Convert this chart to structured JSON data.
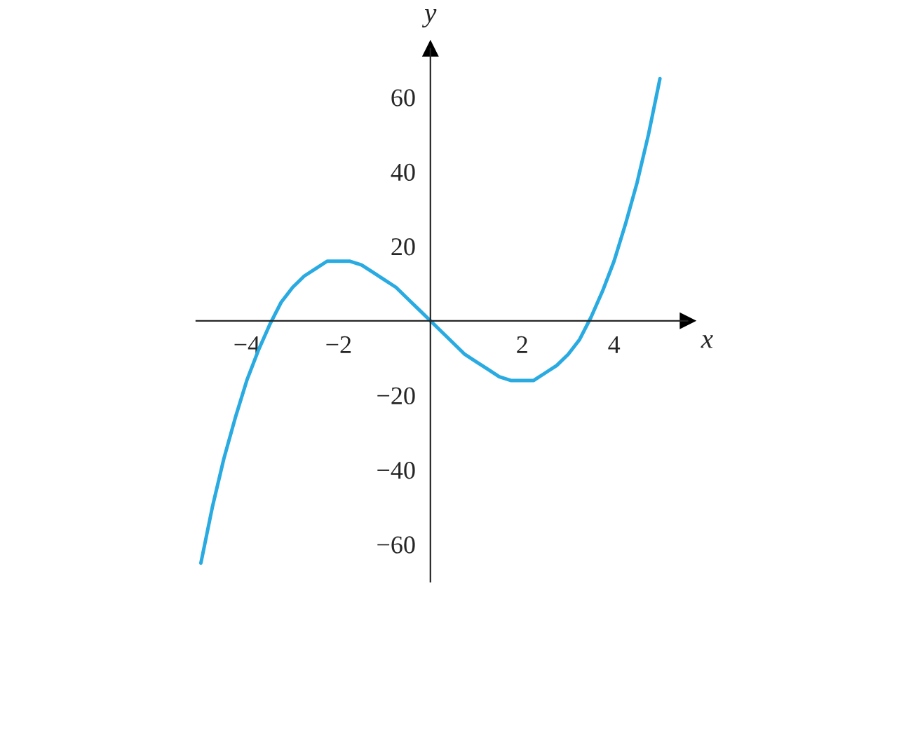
{
  "chart_data": {
    "type": "line",
    "xlabel": "x",
    "ylabel": "y",
    "x": [
      -5,
      -4.75,
      -4.5,
      -4.25,
      -4,
      -3.75,
      -3.5,
      -3.25,
      -3,
      -2.75,
      -2.5,
      -2.25,
      -2,
      -1.75,
      -1.5,
      -1.25,
      -1,
      -0.75,
      -0.5,
      -0.25,
      0,
      0.25,
      0.5,
      0.75,
      1,
      1.25,
      1.5,
      1.75,
      2,
      2.25,
      2.5,
      2.75,
      3,
      3.25,
      3.5,
      3.75,
      4,
      4.25,
      4.5,
      4.75,
      5
    ],
    "series": [
      {
        "color": "#29abe2",
        "values": [
          -65,
          -50,
          -37,
          -26,
          -16,
          -8,
          -1,
          5,
          9,
          12,
          14,
          16,
          16,
          16,
          15,
          13,
          11,
          9,
          6,
          3,
          0,
          -3,
          -6,
          -9,
          -11,
          -13,
          -15,
          -16,
          -16,
          -16,
          -14,
          -12,
          -9,
          -5,
          1,
          8,
          16,
          26,
          37,
          50,
          65
        ]
      }
    ],
    "xlim": [
      -5.1,
      5.6
    ],
    "ylim": [
      -70,
      73
    ],
    "xticks": [
      {
        "value": -4,
        "label": "−4"
      },
      {
        "value": -2,
        "label": "−2"
      },
      2,
      4
    ],
    "yticks": [
      {
        "value": -60,
        "label": "−60"
      },
      {
        "value": -40,
        "label": "−40"
      },
      {
        "value": -20,
        "label": "−20"
      },
      20,
      40,
      60
    ],
    "grid": false,
    "legend": false
  }
}
